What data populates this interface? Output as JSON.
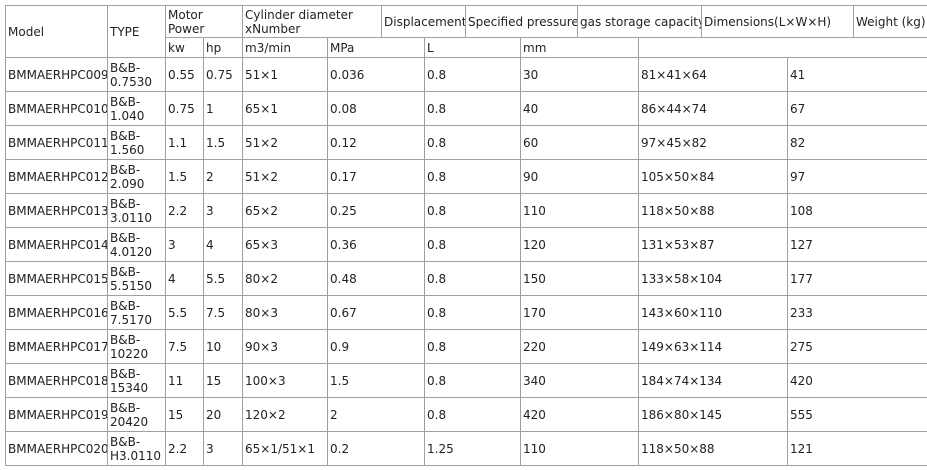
{
  "header": {
    "row1": [
      "Model",
      "TYPE",
      "Motor Power",
      "Cylinder diameter xNumber",
      "Displacement",
      "Specified pressure",
      "gas storage capacity",
      "Dimensions(L×W×H)",
      "Weight (kg)"
    ],
    "row2": [
      "kw",
      "hp",
      "m3/min",
      "MPa",
      "L",
      "mm"
    ]
  },
  "table": {
    "rows": [
      [
        "BMMAERHPC009",
        "B&B-0.7530",
        "0.55",
        "0.75",
        "51×1",
        "0.036",
        "0.8",
        "30",
        "81×41×64",
        "41"
      ],
      [
        "BMMAERHPC010",
        "B&B-1.040",
        "0.75",
        "1",
        "65×1",
        "0.08",
        "0.8",
        "40",
        "86×44×74",
        "67"
      ],
      [
        "BMMAERHPC011",
        "B&B-1.560",
        "1.1",
        "1.5",
        "51×2",
        "0.12",
        "0.8",
        "60",
        "97×45×82",
        "82"
      ],
      [
        "BMMAERHPC012",
        "B&B-2.090",
        "1.5",
        "2",
        "51×2",
        "0.17",
        "0.8",
        "90",
        "105×50×84",
        "97"
      ],
      [
        "BMMAERHPC013",
        "B&B-3.0110",
        "2.2",
        "3",
        "65×2",
        "0.25",
        "0.8",
        "110",
        "118×50×88",
        "108"
      ],
      [
        "BMMAERHPC014",
        "B&B-4.0120",
        "3",
        "4",
        "65×3",
        "0.36",
        "0.8",
        "120",
        "131×53×87",
        "127"
      ],
      [
        "BMMAERHPC015",
        "B&B-5.5150",
        "4",
        "5.5",
        "80×2",
        "0.48",
        "0.8",
        "150",
        "133×58×104",
        "177"
      ],
      [
        "BMMAERHPC016",
        "B&B-7.5170",
        "5.5",
        "7.5",
        "80×3",
        "0.67",
        "0.8",
        "170",
        "143×60×110",
        "233"
      ],
      [
        "BMMAERHPC017",
        "B&B-10220",
        "7.5",
        "10",
        "90×3",
        "0.9",
        "0.8",
        "220",
        "149×63×114",
        "275"
      ],
      [
        "BMMAERHPC018",
        "B&B-15340",
        "11",
        "15",
        "100×3",
        "1.5",
        "0.8",
        "340",
        "184×74×134",
        "420"
      ],
      [
        "BMMAERHPC019",
        "B&B-20420",
        "15",
        "20",
        "120×2",
        "2",
        "0.8",
        "420",
        "186×80×145",
        "555"
      ],
      [
        "BMMAERHPC020",
        "B&B-H3.0110",
        "2.2",
        "3",
        "65×1/51×1",
        "0.2",
        "1.25",
        "110",
        "118×50×88",
        "121"
      ]
    ]
  }
}
